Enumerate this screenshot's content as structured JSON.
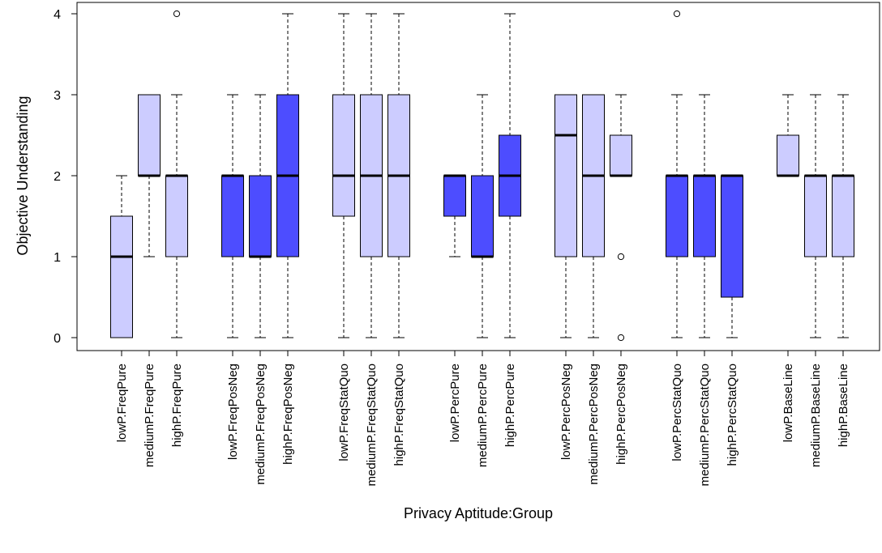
{
  "chart_data": {
    "type": "boxplot",
    "title": "",
    "xlabel": "Privacy Aptitude:Group",
    "ylabel": "Objective Understanding",
    "ylim": [
      0,
      4
    ],
    "yticks": [
      0,
      1,
      2,
      3,
      4
    ],
    "colors": {
      "light": "#ccccff",
      "dark": "#4d4dff"
    },
    "boxes": [
      {
        "label": "lowP.FreqPure",
        "color": "light",
        "whisker_low": 0,
        "q1": 0,
        "median": 1,
        "q3": 1.5,
        "whisker_high": 2,
        "outliers": []
      },
      {
        "label": "mediumP.FreqPure",
        "color": "light",
        "whisker_low": 1,
        "q1": 2,
        "median": 2,
        "q3": 3,
        "whisker_high": 3,
        "outliers": []
      },
      {
        "label": "highP.FreqPure",
        "color": "light",
        "whisker_low": 0,
        "q1": 1,
        "median": 2,
        "q3": 2,
        "whisker_high": 3,
        "outliers": [
          4
        ]
      },
      {
        "label": "lowP.FreqPosNeg",
        "color": "dark",
        "whisker_low": 0,
        "q1": 1,
        "median": 2,
        "q3": 2,
        "whisker_high": 3,
        "outliers": []
      },
      {
        "label": "mediumP.FreqPosNeg",
        "color": "dark",
        "whisker_low": 0,
        "q1": 1,
        "median": 1,
        "q3": 2,
        "whisker_high": 3,
        "outliers": []
      },
      {
        "label": "highP.FreqPosNeg",
        "color": "dark",
        "whisker_low": 0,
        "q1": 1,
        "median": 2,
        "q3": 3,
        "whisker_high": 4,
        "outliers": []
      },
      {
        "label": "lowP.FreqStatQuo",
        "color": "light",
        "whisker_low": 0,
        "q1": 1.5,
        "median": 2,
        "q3": 3,
        "whisker_high": 4,
        "outliers": []
      },
      {
        "label": "mediumP.FreqStatQuo",
        "color": "light",
        "whisker_low": 0,
        "q1": 1,
        "median": 2,
        "q3": 3,
        "whisker_high": 4,
        "outliers": []
      },
      {
        "label": "highP.FreqStatQuo",
        "color": "light",
        "whisker_low": 0,
        "q1": 1,
        "median": 2,
        "q3": 3,
        "whisker_high": 4,
        "outliers": []
      },
      {
        "label": "lowP.PercPure",
        "color": "dark",
        "whisker_low": 1,
        "q1": 1.5,
        "median": 2,
        "q3": 2,
        "whisker_high": 2,
        "outliers": []
      },
      {
        "label": "mediumP.PercPure",
        "color": "dark",
        "whisker_low": 0,
        "q1": 1,
        "median": 1,
        "q3": 2,
        "whisker_high": 3,
        "outliers": []
      },
      {
        "label": "highP.PercPure",
        "color": "dark",
        "whisker_low": 0,
        "q1": 1.5,
        "median": 2,
        "q3": 2.5,
        "whisker_high": 4,
        "outliers": []
      },
      {
        "label": "lowP.PercPosNeg",
        "color": "light",
        "whisker_low": 0,
        "q1": 1,
        "median": 2.5,
        "q3": 3,
        "whisker_high": 3,
        "outliers": []
      },
      {
        "label": "mediumP.PercPosNeg",
        "color": "light",
        "whisker_low": 0,
        "q1": 1,
        "median": 2,
        "q3": 3,
        "whisker_high": 3,
        "outliers": []
      },
      {
        "label": "highP.PercPosNeg",
        "color": "light",
        "whisker_low": 2,
        "q1": 2,
        "median": 2,
        "q3": 2.5,
        "whisker_high": 3,
        "outliers": [
          1,
          0
        ]
      },
      {
        "label": "lowP.PercStatQuo",
        "color": "dark",
        "whisker_low": 0,
        "q1": 1,
        "median": 2,
        "q3": 2,
        "whisker_high": 3,
        "outliers": [
          4
        ]
      },
      {
        "label": "mediumP.PercStatQuo",
        "color": "dark",
        "whisker_low": 0,
        "q1": 1,
        "median": 2,
        "q3": 2,
        "whisker_high": 3,
        "outliers": []
      },
      {
        "label": "highP.PercStatQuo",
        "color": "dark",
        "whisker_low": 0,
        "q1": 0.5,
        "median": 2,
        "q3": 2,
        "whisker_high": 2,
        "outliers": []
      },
      {
        "label": "lowP.BaseLine",
        "color": "light",
        "whisker_low": 2,
        "q1": 2,
        "median": 2,
        "q3": 2.5,
        "whisker_high": 3,
        "outliers": []
      },
      {
        "label": "mediumP.BaseLine",
        "color": "light",
        "whisker_low": 0,
        "q1": 1,
        "median": 2,
        "q3": 2,
        "whisker_high": 3,
        "outliers": []
      },
      {
        "label": "highP.BaseLine",
        "color": "light",
        "whisker_low": 0,
        "q1": 1,
        "median": 2,
        "q3": 2,
        "whisker_high": 3,
        "outliers": []
      }
    ]
  }
}
